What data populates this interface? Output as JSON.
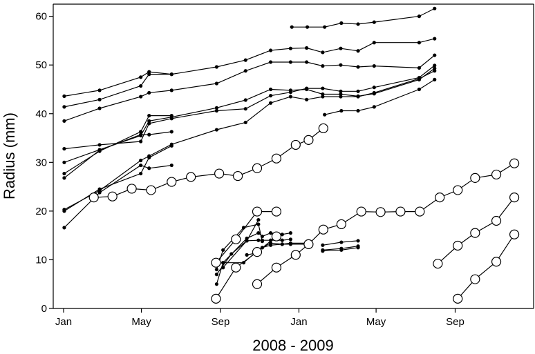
{
  "chart_data": {
    "type": "scatter",
    "xlabel": "2008 - 2009",
    "ylabel": "Radius (mm)",
    "ylim": [
      0,
      62.5
    ],
    "xlim": [
      "2008-01-01",
      "2009-12-31"
    ],
    "yticks": [
      0,
      10,
      20,
      30,
      40,
      50,
      60
    ],
    "xticks": [
      {
        "date": "2008-01-01",
        "label": "Jan"
      },
      {
        "date": "2008-05-01",
        "label": "May"
      },
      {
        "date": "2008-09-01",
        "label": "Sep"
      },
      {
        "date": "2009-01-01",
        "label": "Jan"
      },
      {
        "date": "2009-05-01",
        "label": "May"
      },
      {
        "date": "2009-09-01",
        "label": "Sep"
      }
    ],
    "grid": false,
    "markers": {
      "filled": "small solid black dot",
      "open": "large open circle"
    },
    "series": [
      {
        "marker": "filled",
        "points": [
          [
            "2008-12-21",
            57.8
          ],
          [
            "2009-01-14",
            57.8
          ],
          [
            "2009-02-10",
            57.8
          ],
          [
            "2009-03-08",
            58.6
          ],
          [
            "2009-04-03",
            58.4
          ],
          [
            "2009-04-28",
            58.8
          ],
          [
            "2009-07-07",
            60.0
          ],
          [
            "2009-07-31",
            61.6
          ]
        ]
      },
      {
        "marker": "filled",
        "points": [
          [
            "2008-01-02",
            43.6
          ],
          [
            "2008-02-26",
            44.8
          ],
          [
            "2008-04-30",
            47.5
          ],
          [
            "2008-05-13",
            48.6
          ],
          [
            "2008-06-17",
            48.1
          ],
          [
            "2008-08-26",
            49.6
          ],
          [
            "2008-10-10",
            51.0
          ],
          [
            "2008-11-18",
            53.0
          ],
          [
            "2008-12-19",
            53.4
          ],
          [
            "2009-01-13",
            53.5
          ],
          [
            "2009-02-07",
            52.6
          ],
          [
            "2009-03-07",
            53.4
          ],
          [
            "2009-04-03",
            52.9
          ],
          [
            "2009-04-28",
            54.6
          ],
          [
            "2009-07-07",
            54.6
          ],
          [
            "2009-07-31",
            55.4
          ]
        ]
      },
      {
        "marker": "filled",
        "points": [
          [
            "2008-01-02",
            41.4
          ],
          [
            "2008-02-26",
            42.9
          ],
          [
            "2008-04-30",
            45.7
          ],
          [
            "2008-05-13",
            48.1
          ],
          [
            "2008-06-17",
            48.1
          ]
        ]
      },
      {
        "marker": "filled",
        "points": [
          [
            "2008-01-02",
            38.5
          ],
          [
            "2008-02-26",
            41.1
          ],
          [
            "2008-04-30",
            43.5
          ],
          [
            "2008-05-13",
            44.3
          ],
          [
            "2008-06-17",
            44.8
          ],
          [
            "2008-08-26",
            46.2
          ],
          [
            "2008-10-10",
            48.8
          ],
          [
            "2008-11-18",
            50.6
          ],
          [
            "2008-12-19",
            50.6
          ],
          [
            "2009-01-13",
            50.6
          ],
          [
            "2009-02-07",
            49.8
          ],
          [
            "2009-03-07",
            50.0
          ],
          [
            "2009-04-03",
            49.6
          ],
          [
            "2009-04-28",
            49.8
          ],
          [
            "2009-07-07",
            49.4
          ],
          [
            "2009-07-31",
            52.0
          ]
        ]
      },
      {
        "marker": "filled",
        "points": [
          [
            "2008-01-02",
            32.8
          ],
          [
            "2008-02-26",
            33.6
          ],
          [
            "2008-04-30",
            34.3
          ],
          [
            "2008-05-13",
            38.0
          ],
          [
            "2008-06-17",
            39.0
          ],
          [
            "2008-08-26",
            40.6
          ],
          [
            "2008-10-10",
            41.0
          ],
          [
            "2008-11-18",
            43.7
          ],
          [
            "2008-12-19",
            44.4
          ],
          [
            "2009-01-13",
            45.2
          ],
          [
            "2009-02-07",
            45.2
          ],
          [
            "2009-03-07",
            44.6
          ],
          [
            "2009-04-03",
            44.6
          ],
          [
            "2009-04-28",
            45.4
          ],
          [
            "2009-07-07",
            47.4
          ],
          [
            "2009-07-31",
            49.9
          ]
        ]
      },
      {
        "marker": "filled",
        "points": [
          [
            "2008-01-02",
            30.0
          ],
          [
            "2008-02-26",
            32.6
          ],
          [
            "2008-04-30",
            35.5
          ],
          [
            "2008-05-13",
            38.5
          ],
          [
            "2008-06-17",
            39.3
          ],
          [
            "2008-08-26",
            41.2
          ],
          [
            "2008-10-10",
            42.8
          ],
          [
            "2008-11-18",
            45.0
          ],
          [
            "2008-12-19",
            44.8
          ],
          [
            "2009-01-13",
            45.0
          ],
          [
            "2009-02-07",
            44.0
          ],
          [
            "2009-03-07",
            44.0
          ],
          [
            "2009-04-03",
            43.6
          ],
          [
            "2009-04-28",
            44.1
          ],
          [
            "2009-07-07",
            47.0
          ],
          [
            "2009-07-31",
            49.3
          ]
        ]
      },
      {
        "marker": "filled",
        "points": [
          [
            "2008-01-02",
            27.7
          ],
          [
            "2008-02-26",
            32.3
          ],
          [
            "2008-04-30",
            36.3
          ],
          [
            "2008-05-13",
            39.6
          ],
          [
            "2008-06-17",
            39.6
          ]
        ]
      },
      {
        "marker": "filled",
        "points": [
          [
            "2008-01-02",
            26.8
          ],
          [
            "2008-02-26",
            32.5
          ],
          [
            "2008-04-30",
            35.7
          ],
          [
            "2008-05-13",
            35.7
          ],
          [
            "2008-06-17",
            36.3
          ]
        ]
      },
      {
        "marker": "filled",
        "points": [
          [
            "2008-01-02",
            20.3
          ],
          [
            "2008-02-26",
            24.2
          ],
          [
            "2008-04-30",
            30.4
          ],
          [
            "2008-05-13",
            31.3
          ],
          [
            "2008-06-17",
            33.7
          ],
          [
            "2008-08-26",
            36.7
          ],
          [
            "2008-10-10",
            38.2
          ],
          [
            "2008-11-18",
            42.2
          ],
          [
            "2008-12-19",
            43.5
          ],
          [
            "2009-01-13",
            42.9
          ],
          [
            "2009-02-07",
            43.5
          ],
          [
            "2009-03-07",
            43.5
          ],
          [
            "2009-04-03",
            43.5
          ],
          [
            "2009-04-28",
            44.3
          ],
          [
            "2009-07-07",
            47.2
          ],
          [
            "2009-07-31",
            48.8
          ]
        ]
      },
      {
        "marker": "filled",
        "points": [
          [
            "2008-01-02",
            20.0
          ],
          [
            "2008-02-26",
            24.5
          ],
          [
            "2008-04-30",
            27.7
          ],
          [
            "2008-05-13",
            31.0
          ],
          [
            "2008-06-17",
            33.4
          ]
        ]
      },
      {
        "marker": "filled",
        "points": [
          [
            "2008-01-02",
            16.6
          ],
          [
            "2008-02-26",
            23.8
          ],
          [
            "2008-04-30",
            29.4
          ],
          [
            "2008-05-13",
            28.8
          ],
          [
            "2008-06-17",
            29.4
          ]
        ]
      },
      {
        "marker": "filled",
        "points": [
          [
            "2009-02-10",
            39.8
          ],
          [
            "2009-03-08",
            40.6
          ],
          [
            "2009-04-03",
            40.6
          ],
          [
            "2009-04-28",
            41.4
          ],
          [
            "2009-07-07",
            45.0
          ],
          [
            "2009-07-31",
            47.0
          ]
        ]
      },
      {
        "marker": "filled",
        "points": [
          [
            "2008-08-26",
            7.0
          ],
          [
            "2008-09-18",
            11.2
          ],
          [
            "2008-10-12",
            13.9
          ],
          [
            "2008-10-30",
            18.2
          ]
        ]
      },
      {
        "marker": "filled",
        "points": [
          [
            "2008-08-26",
            5.0
          ],
          [
            "2008-09-05",
            9.4
          ],
          [
            "2008-10-12",
            14.4
          ],
          [
            "2008-10-30",
            15.5
          ],
          [
            "2008-11-05",
            14.8
          ],
          [
            "2008-11-18",
            15.5
          ],
          [
            "2008-12-06",
            15.2
          ],
          [
            "2008-12-19",
            15.5
          ]
        ]
      },
      {
        "marker": "filled",
        "points": [
          [
            "2008-08-26",
            8.0
          ],
          [
            "2008-09-05",
            12.0
          ],
          [
            "2008-10-07",
            16.6
          ],
          [
            "2008-10-30",
            17.3
          ],
          [
            "2008-11-05",
            13.8
          ]
        ]
      },
      {
        "marker": "filled",
        "points": [
          [
            "2008-09-05",
            8.4
          ],
          [
            "2008-10-12",
            13.9
          ],
          [
            "2008-10-30",
            14.0
          ],
          [
            "2008-11-05",
            14.0
          ],
          [
            "2008-11-18",
            14.0
          ],
          [
            "2008-12-06",
            14.0
          ],
          [
            "2008-12-19",
            14.2
          ]
        ]
      },
      {
        "marker": "filled",
        "points": [
          [
            "2008-09-05",
            9.4
          ],
          [
            "2008-10-07",
            9.4
          ],
          [
            "2008-10-30",
            12.0
          ],
          [
            "2008-11-05",
            12.5
          ],
          [
            "2008-11-18",
            13.4
          ],
          [
            "2008-12-06",
            13.2
          ],
          [
            "2008-12-19",
            13.4
          ],
          [
            "2009-01-13",
            13.4
          ]
        ]
      },
      {
        "marker": "filled",
        "points": [
          [
            "2008-10-12",
            11.0
          ],
          [
            "2008-10-30",
            11.5
          ],
          [
            "2008-11-05",
            12.5
          ],
          [
            "2008-11-18",
            13.0
          ],
          [
            "2008-12-06",
            13.2
          ],
          [
            "2008-12-19",
            13.2
          ],
          [
            "2009-01-13",
            13.2
          ]
        ]
      },
      {
        "marker": "filled",
        "points": [
          [
            "2009-02-07",
            13.0
          ],
          [
            "2009-03-08",
            13.6
          ],
          [
            "2009-04-03",
            13.9
          ]
        ]
      },
      {
        "marker": "filled",
        "points": [
          [
            "2009-02-07",
            12.0
          ],
          [
            "2009-03-08",
            12.3
          ],
          [
            "2009-04-03",
            12.8
          ]
        ]
      },
      {
        "marker": "filled",
        "points": [
          [
            "2009-02-07",
            11.8
          ],
          [
            "2009-03-08",
            12.0
          ],
          [
            "2009-04-03",
            12.5
          ]
        ]
      },
      {
        "marker": "open",
        "points": [
          [
            "2008-02-17",
            22.8
          ],
          [
            "2008-03-17",
            23.0
          ],
          [
            "2008-04-16",
            24.6
          ],
          [
            "2008-05-16",
            24.3
          ],
          [
            "2008-06-17",
            26.0
          ],
          [
            "2008-07-17",
            27.0
          ],
          [
            "2008-08-30",
            27.7
          ],
          [
            "2008-09-28",
            27.2
          ],
          [
            "2008-10-28",
            28.8
          ],
          [
            "2008-11-27",
            30.8
          ],
          [
            "2008-12-27",
            33.6
          ],
          [
            "2009-01-16",
            34.6
          ],
          [
            "2009-02-08",
            37.0
          ]
        ]
      },
      {
        "marker": "open",
        "points": [
          [
            "2008-08-25",
            9.4
          ],
          [
            "2008-09-25",
            14.2
          ],
          [
            "2008-10-28",
            19.9
          ],
          [
            "2008-11-27",
            19.9
          ]
        ]
      },
      {
        "marker": "open",
        "points": [
          [
            "2008-08-25",
            2.0
          ],
          [
            "2008-09-25",
            8.4
          ],
          [
            "2008-10-28",
            11.6
          ],
          [
            "2008-11-27",
            14.8
          ]
        ]
      },
      {
        "marker": "open",
        "points": [
          [
            "2008-10-28",
            5.0
          ],
          [
            "2008-11-27",
            8.4
          ],
          [
            "2008-12-27",
            11.0
          ],
          [
            "2009-01-16",
            13.2
          ],
          [
            "2009-02-08",
            16.2
          ],
          [
            "2009-03-08",
            17.3
          ],
          [
            "2009-04-08",
            19.9
          ],
          [
            "2009-05-08",
            19.8
          ],
          [
            "2009-06-08",
            19.9
          ],
          [
            "2009-07-08",
            19.9
          ],
          [
            "2009-08-08",
            22.8
          ],
          [
            "2009-09-05",
            24.3
          ],
          [
            "2009-10-02",
            26.8
          ],
          [
            "2009-11-04",
            27.5
          ],
          [
            "2009-12-02",
            29.8
          ]
        ]
      },
      {
        "marker": "open",
        "points": [
          [
            "2009-08-05",
            9.2
          ],
          [
            "2009-09-05",
            12.9
          ],
          [
            "2009-10-02",
            15.5
          ],
          [
            "2009-11-04",
            18.0
          ],
          [
            "2009-12-02",
            22.8
          ]
        ]
      },
      {
        "marker": "open",
        "points": [
          [
            "2009-09-05",
            2.0
          ],
          [
            "2009-10-02",
            6.0
          ],
          [
            "2009-11-04",
            9.6
          ],
          [
            "2009-12-02",
            15.2
          ]
        ]
      }
    ]
  }
}
